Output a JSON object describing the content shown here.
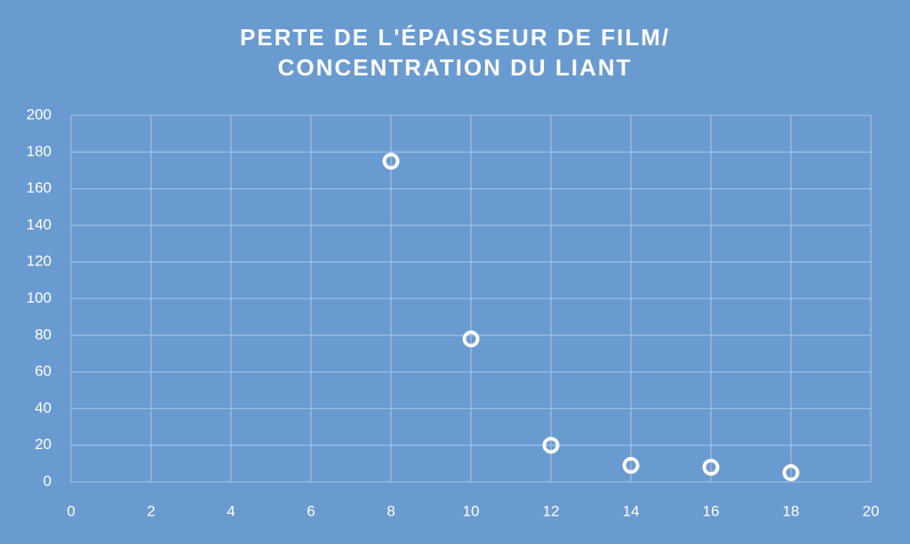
{
  "chart_data": {
    "type": "scatter",
    "title": [
      "PERTE DE L'ÉPAISSEUR DE FILM/",
      "CONCENTRATION DU LIANT"
    ],
    "x": [
      8,
      10,
      12,
      14,
      16,
      18
    ],
    "values": [
      175,
      78,
      20,
      9,
      8,
      5
    ],
    "color": "#ffffff",
    "xlim": [
      0,
      20
    ],
    "xticks": [
      0,
      2,
      4,
      6,
      8,
      10,
      12,
      14,
      16,
      18,
      20
    ],
    "ylim": [
      0,
      200
    ],
    "yticks": [
      0,
      20,
      40,
      60,
      80,
      100,
      120,
      140,
      160,
      180,
      200
    ],
    "grid": true
  }
}
